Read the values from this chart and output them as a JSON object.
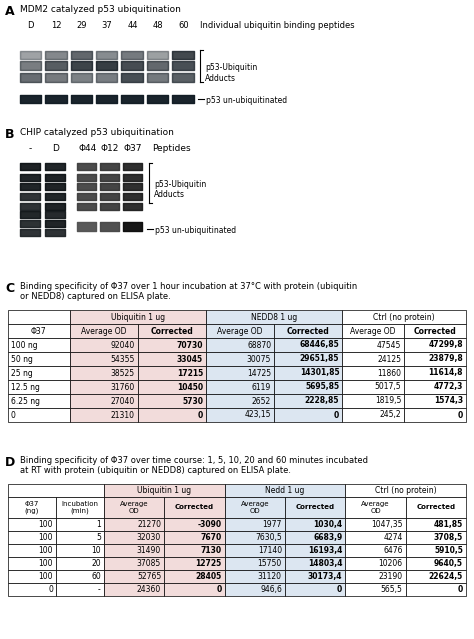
{
  "panel_a_title": "MDM2 catalyzed p53 ubiquitination",
  "panel_a_lane_labels": [
    "D",
    "12",
    "29",
    "37",
    "44",
    "48",
    "60"
  ],
  "panel_a_right_label": "Individual ubiquitin binding peptides",
  "panel_a_annot1": "p53-Ubiquitin\nAdducts",
  "panel_a_annot2": "p53 un-ubiquitinated",
  "panel_b_title": "CHIP catalyzed p53 ubiquitination",
  "panel_b_labels_left": [
    "-",
    "D"
  ],
  "panel_b_labels_right": [
    "Φ44",
    "Φ12",
    "Φ37"
  ],
  "panel_b_label_far": "Peptides",
  "panel_b_annot1": "p53-Ubiquitin\nAdducts",
  "panel_b_annot2": "p53 un-ubiquitinated",
  "panel_c_title": "Binding specificity of Φ37 over 1 hour incubation at 37°C with protein (ubiquitin\nor NEDD8) captured on ELISA plate.",
  "panel_c_rows": [
    [
      "100 ng",
      "92040",
      "70730",
      "68870",
      "68446,85",
      "47545",
      "47299,8"
    ],
    [
      "50 ng",
      "54355",
      "33045",
      "30075",
      "29651,85",
      "24125",
      "23879,8"
    ],
    [
      "25 ng",
      "38525",
      "17215",
      "14725",
      "14301,85",
      "11860",
      "11614,8"
    ],
    [
      "12.5 ng",
      "31760",
      "10450",
      "6119",
      "5695,85",
      "5017,5",
      "4772,3"
    ],
    [
      "6.25 ng",
      "27040",
      "5730",
      "2652",
      "2228,85",
      "1819,5",
      "1574,3"
    ],
    [
      "0",
      "21310",
      "0",
      "423,15",
      "0",
      "245,2",
      "0"
    ]
  ],
  "panel_d_title": "Binding specificity of Φ37 over time course: 1, 5, 10, 20 and 60 minutes incubated\nat RT with protein (ubiquitin or NEDD8) captured on ELISA plate.",
  "panel_d_rows": [
    [
      "100",
      "1",
      "21270",
      "-3090",
      "1977",
      "1030,4",
      "1047,35",
      "481,85"
    ],
    [
      "100",
      "5",
      "32030",
      "7670",
      "7630,5",
      "6683,9",
      "4274",
      "3708,5"
    ],
    [
      "100",
      "10",
      "31490",
      "7130",
      "17140",
      "16193,4",
      "6476",
      "5910,5"
    ],
    [
      "100",
      "20",
      "37085",
      "12725",
      "15750",
      "14803,4",
      "10206",
      "9640,5"
    ],
    [
      "100",
      "60",
      "52765",
      "28405",
      "31120",
      "30173,4",
      "23190",
      "22624,5"
    ],
    [
      "0",
      "-",
      "24360",
      "0",
      "946,6",
      "0",
      "565,5",
      "0"
    ]
  ],
  "bg_color": "#ffffff",
  "table_pink": "#f2dcdb",
  "table_blue": "#dce6f1",
  "table_white": "#ffffff",
  "gel_a_bg": "#4a6878",
  "gel_b_left_bg": "#1e2d3a",
  "gel_b_right_bg": "#b8a898"
}
